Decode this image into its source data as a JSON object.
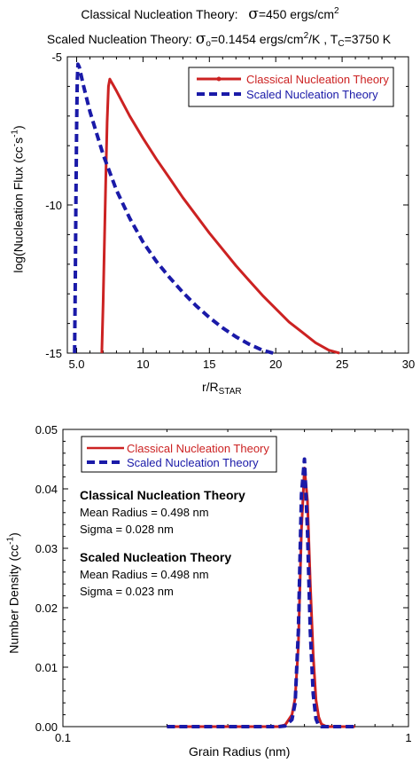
{
  "header": {
    "line1": {
      "prefix": "Classical Nucleation Theory:",
      "sigma": "σ",
      "text": "=450 ergs/cm",
      "sup": "2"
    },
    "line2": {
      "prefix": "Scaled Nucleation Theory:",
      "sigma": "σ",
      "sigma_sub": "o",
      "text1": "=0.1454 ergs/cm",
      "sup1": "2",
      "text2": "/K , T",
      "t_sub": "C",
      "text3": "=3750 K"
    }
  },
  "chart_data": [
    {
      "type": "line",
      "xlabel": {
        "main": "r/R",
        "sub": "STAR"
      },
      "ylabel": {
        "main": "log(Nucleation Flux (cc",
        "sup1": "-",
        "mid": "s",
        "sup2": "-1",
        "end": ")"
      },
      "xlim": [
        4.3,
        30
      ],
      "ylim": [
        -15,
        -5
      ],
      "xticks": [
        5,
        10,
        15,
        20,
        25,
        30
      ],
      "xtick_labels": [
        "5.0",
        "10",
        "15",
        "20",
        "25",
        "30"
      ],
      "yticks": [
        -5,
        -10,
        -15
      ],
      "ytick_labels": [
        "-5",
        "-10",
        "-15"
      ],
      "legend_position": "top-right",
      "series": [
        {
          "name": "Classical Nucleation Theory",
          "color": "#cc2222",
          "style": "solid",
          "x": [
            6.9,
            7.0,
            7.1,
            7.2,
            7.3,
            7.4,
            7.5,
            8,
            9,
            10,
            11,
            12,
            13,
            14,
            15,
            16,
            17,
            18,
            19,
            20,
            21,
            22,
            23,
            24,
            24.8
          ],
          "y": [
            -15,
            -13.3,
            -11.2,
            -9.1,
            -7.2,
            -6.0,
            -5.75,
            -6.15,
            -7.0,
            -7.75,
            -8.45,
            -9.1,
            -9.75,
            -10.35,
            -10.95,
            -11.5,
            -12.05,
            -12.55,
            -13.05,
            -13.5,
            -13.95,
            -14.3,
            -14.65,
            -14.9,
            -15
          ]
        },
        {
          "name": "Scaled Nucleation Theory",
          "color": "#1a1aa8",
          "style": "dashed",
          "x": [
            4.85,
            4.9,
            4.95,
            5.0,
            5.05,
            5.1,
            5.2,
            5.5,
            6,
            7,
            8,
            9,
            10,
            11,
            12,
            13,
            14,
            15,
            16,
            17,
            18,
            19,
            19.8
          ],
          "y": [
            -15,
            -12.5,
            -9.8,
            -7.3,
            -5.8,
            -5.25,
            -5.35,
            -5.95,
            -6.85,
            -8.3,
            -9.5,
            -10.45,
            -11.25,
            -11.9,
            -12.45,
            -12.95,
            -13.4,
            -13.8,
            -14.15,
            -14.45,
            -14.7,
            -14.9,
            -15
          ]
        }
      ]
    },
    {
      "type": "line",
      "xlabel": "Grain Radius (nm)",
      "ylabel": {
        "main": "Number Density (cc",
        "sup": "-1",
        "end": ")"
      },
      "x_scale": "log",
      "xlim": [
        0.1,
        1
      ],
      "ylim": [
        0,
        0.05
      ],
      "xticks": [
        0.1,
        1
      ],
      "xtick_labels": [
        "0.1",
        "1"
      ],
      "yticks": [
        0,
        0.01,
        0.02,
        0.03,
        0.04,
        0.05
      ],
      "ytick_labels": [
        "0.00",
        "0.01",
        "0.02",
        "0.03",
        "0.04",
        "0.05"
      ],
      "legend_position": "top-left",
      "annotations": [
        {
          "title": "Classical Nucleation Theory",
          "lines": [
            "Mean Radius = 0.498 nm",
            "Sigma = 0.028 nm"
          ]
        },
        {
          "title": "Scaled Nucleation Theory",
          "lines": [
            "Mean Radius = 0.498 nm",
            "Sigma = 0.023 nm"
          ]
        }
      ],
      "series": [
        {
          "name": "Classical Nucleation Theory",
          "color": "#cc2222",
          "style": "solid",
          "x": [
            0.2,
            0.3,
            0.38,
            0.42,
            0.44,
            0.46,
            0.47,
            0.48,
            0.49,
            0.5,
            0.51,
            0.52,
            0.53,
            0.54,
            0.55,
            0.56,
            0.58,
            0.62,
            0.7
          ],
          "y": [
            0,
            0,
            0,
            0,
            0.0003,
            0.002,
            0.0048,
            0.0135,
            0.033,
            0.0435,
            0.038,
            0.024,
            0.012,
            0.0045,
            0.0016,
            0.0004,
            0,
            0,
            0
          ]
        },
        {
          "name": "Scaled Nucleation Theory",
          "color": "#1a1aa8",
          "style": "dashed",
          "x": [
            0.2,
            0.3,
            0.38,
            0.42,
            0.44,
            0.46,
            0.47,
            0.48,
            0.49,
            0.5,
            0.51,
            0.52,
            0.53,
            0.54,
            0.55,
            0.56,
            0.58,
            0.62,
            0.7
          ],
          "y": [
            0,
            0,
            0,
            0,
            0.0001,
            0.0012,
            0.004,
            0.016,
            0.039,
            0.045,
            0.033,
            0.016,
            0.0055,
            0.0013,
            0.0002,
            0,
            0,
            0,
            0
          ]
        }
      ]
    }
  ]
}
